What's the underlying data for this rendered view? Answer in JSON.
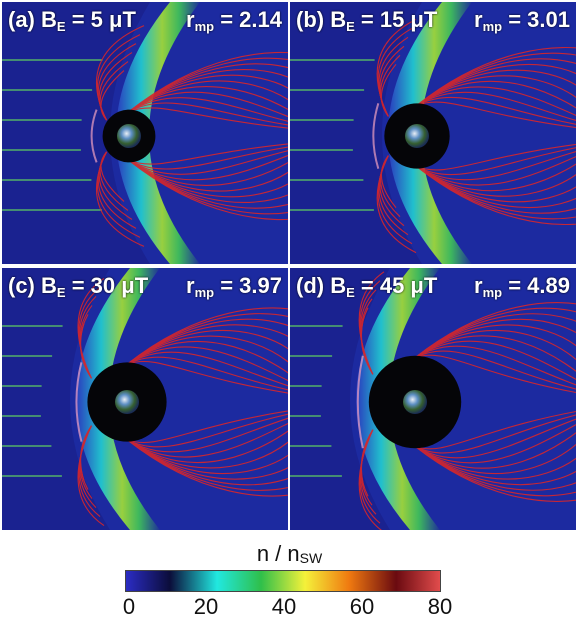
{
  "panels": [
    {
      "label": "(a) B",
      "field_sub": "E",
      "field_value": "= 5 μT",
      "r_label": "r",
      "r_sub": "mp",
      "r_value": "= 2.14",
      "B_uT": 5,
      "r_mp": 2.14
    },
    {
      "label": "(b) B",
      "field_sub": "E",
      "field_value": "= 15 μT",
      "r_label": "r",
      "r_sub": "mp",
      "r_value": "= 3.01",
      "B_uT": 15,
      "r_mp": 3.01
    },
    {
      "label": "(c) B",
      "field_sub": "E",
      "field_value": "= 30 μT",
      "r_label": "r",
      "r_sub": "mp",
      "r_value": "= 3.97",
      "B_uT": 30,
      "r_mp": 3.97
    },
    {
      "label": "(d) B",
      "field_sub": "E",
      "field_value": "= 45 μT",
      "r_label": "r",
      "r_sub": "mp",
      "r_value": "= 4.89",
      "B_uT": 45,
      "r_mp": 4.89
    }
  ],
  "colorbar": {
    "title_main": "n / n",
    "title_sub": "SW",
    "ticks": [
      "0",
      "20",
      "40",
      "60",
      "80"
    ],
    "range": [
      0,
      80
    ],
    "colors": [
      "#2b2cc4",
      "#0b0d3a",
      "#21e8e0",
      "#2fbf4a",
      "#f4f13a",
      "#f07a10",
      "#6a0a10",
      "#e14c4c"
    ]
  },
  "colors": {
    "background_field": "#1c2aa0",
    "field_lines": "#d9262a",
    "solar_wind_lines": "#5fd05f",
    "magnetosheath": "#3fbf5a"
  }
}
